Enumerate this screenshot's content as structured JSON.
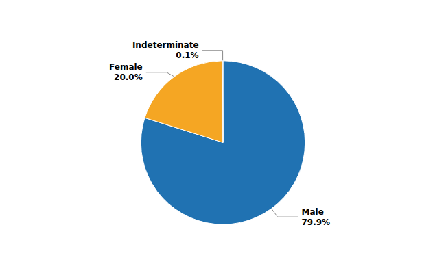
{
  "chart_data": {
    "type": "pie",
    "categories": [
      "Male",
      "Female",
      "Indeterminate"
    ],
    "values": [
      79.9,
      20.0,
      0.1
    ],
    "value_labels": [
      "79.9%",
      "20.0%",
      "0.1%"
    ],
    "colors": [
      "#2072B2",
      "#F5A623",
      "#2072B2"
    ],
    "data_labels": true
  }
}
